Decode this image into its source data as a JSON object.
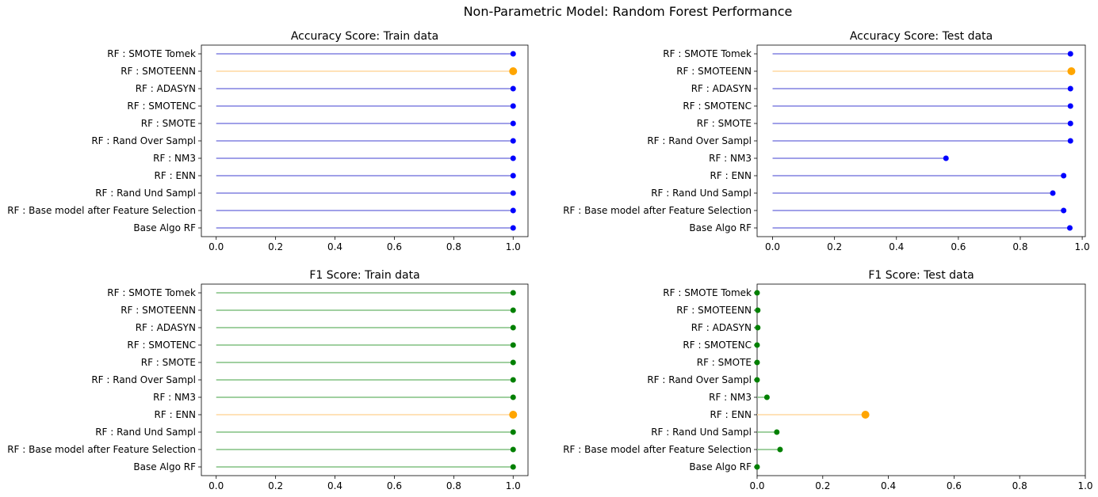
{
  "figure": {
    "title": "Non-Parametric Model: Random Forest Performance"
  },
  "chart_data": [
    {
      "type": "lollipop",
      "title": "Accuracy Score: Train data",
      "categories": [
        "Base Algo RF",
        "RF : Base model after Feature Selection",
        "RF : Rand Und Sampl",
        "RF : ENN",
        "RF : NM3",
        "RF : Rand Over Sampl",
        "RF : SMOTE",
        "RF : SMOTENC",
        "RF : ADASYN",
        "RF : SMOTEENN",
        "RF : SMOTE Tomek"
      ],
      "values": [
        1.0,
        1.0,
        1.0,
        1.0,
        1.0,
        1.0,
        1.0,
        1.0,
        1.0,
        1.0,
        1.0
      ],
      "highlight_index": 9,
      "colors": {
        "line": "#8080e0",
        "marker": "#0000ff",
        "highlight": "#ffa500",
        "highlight_line": "#ffd9a0"
      },
      "xticks": [
        "0.0",
        "0.2",
        "0.4",
        "0.6",
        "0.8",
        "1.0"
      ],
      "xtick_values": [
        0,
        0.2,
        0.4,
        0.6,
        0.8,
        1.0
      ],
      "xlim": [
        -0.05,
        1.05
      ],
      "grid": false
    },
    {
      "type": "lollipop",
      "title": "Accuracy Score: Test data",
      "categories": [
        "Base Algo RF",
        "RF : Base model after Feature Selection",
        "RF : Rand Und Sampl",
        "RF : ENN",
        "RF : NM3",
        "RF : Rand Over Sampl",
        "RF : SMOTE",
        "RF : SMOTENC",
        "RF : ADASYN",
        "RF : SMOTEENN",
        "RF : SMOTE Tomek"
      ],
      "values": [
        0.96,
        0.94,
        0.905,
        0.94,
        0.56,
        0.962,
        0.962,
        0.962,
        0.962,
        0.965,
        0.962
      ],
      "highlight_index": 9,
      "colors": {
        "line": "#8080e0",
        "marker": "#0000ff",
        "highlight": "#ffa500",
        "highlight_line": "#ffd9a0"
      },
      "xticks": [
        "0.0",
        "0.2",
        "0.4",
        "0.6",
        "0.8",
        "1.0"
      ],
      "xtick_values": [
        0,
        0.2,
        0.4,
        0.6,
        0.8,
        1.0
      ],
      "xlim": [
        -0.05,
        1.01
      ],
      "grid": false
    },
    {
      "type": "lollipop",
      "title": "F1 Score: Train data",
      "categories": [
        "Base Algo RF",
        "RF : Base model after Feature Selection",
        "RF : Rand Und Sampl",
        "RF : ENN",
        "RF : NM3",
        "RF : Rand Over Sampl",
        "RF : SMOTE",
        "RF : SMOTENC",
        "RF : ADASYN",
        "RF : SMOTEENN",
        "RF : SMOTE Tomek"
      ],
      "values": [
        1.0,
        1.0,
        1.0,
        1.0,
        1.0,
        1.0,
        1.0,
        1.0,
        1.0,
        1.0,
        1.0
      ],
      "highlight_index": 3,
      "colors": {
        "line": "#80c080",
        "marker": "#008000",
        "highlight": "#ffa500",
        "highlight_line": "#ffd9a0"
      },
      "xticks": [
        "0.0",
        "0.2",
        "0.4",
        "0.6",
        "0.8",
        "1.0"
      ],
      "xtick_values": [
        0,
        0.2,
        0.4,
        0.6,
        0.8,
        1.0
      ],
      "xlim": [
        -0.05,
        1.05
      ],
      "grid": false
    },
    {
      "type": "lollipop",
      "title": "F1 Score: Test data",
      "categories": [
        "Base Algo RF",
        "RF : Base model after Feature Selection",
        "RF : Rand Und Sampl",
        "RF : ENN",
        "RF : NM3",
        "RF : Rand Over Sampl",
        "RF : SMOTE",
        "RF : SMOTENC",
        "RF : ADASYN",
        "RF : SMOTEENN",
        "RF : SMOTE Tomek"
      ],
      "values": [
        0.0,
        0.07,
        0.06,
        0.33,
        0.03,
        0.0,
        0.0,
        0.0,
        0.002,
        0.002,
        0.0
      ],
      "highlight_index": 3,
      "colors": {
        "line": "#80c080",
        "marker": "#008000",
        "highlight": "#ffa500",
        "highlight_line": "#ffd9a0"
      },
      "xticks": [
        "0.0",
        "0.2",
        "0.4",
        "0.6",
        "0.8",
        "1.0"
      ],
      "xtick_values": [
        0,
        0.2,
        0.4,
        0.6,
        0.8,
        1.0
      ],
      "xlim": [
        0,
        1.0
      ],
      "grid": false
    }
  ]
}
